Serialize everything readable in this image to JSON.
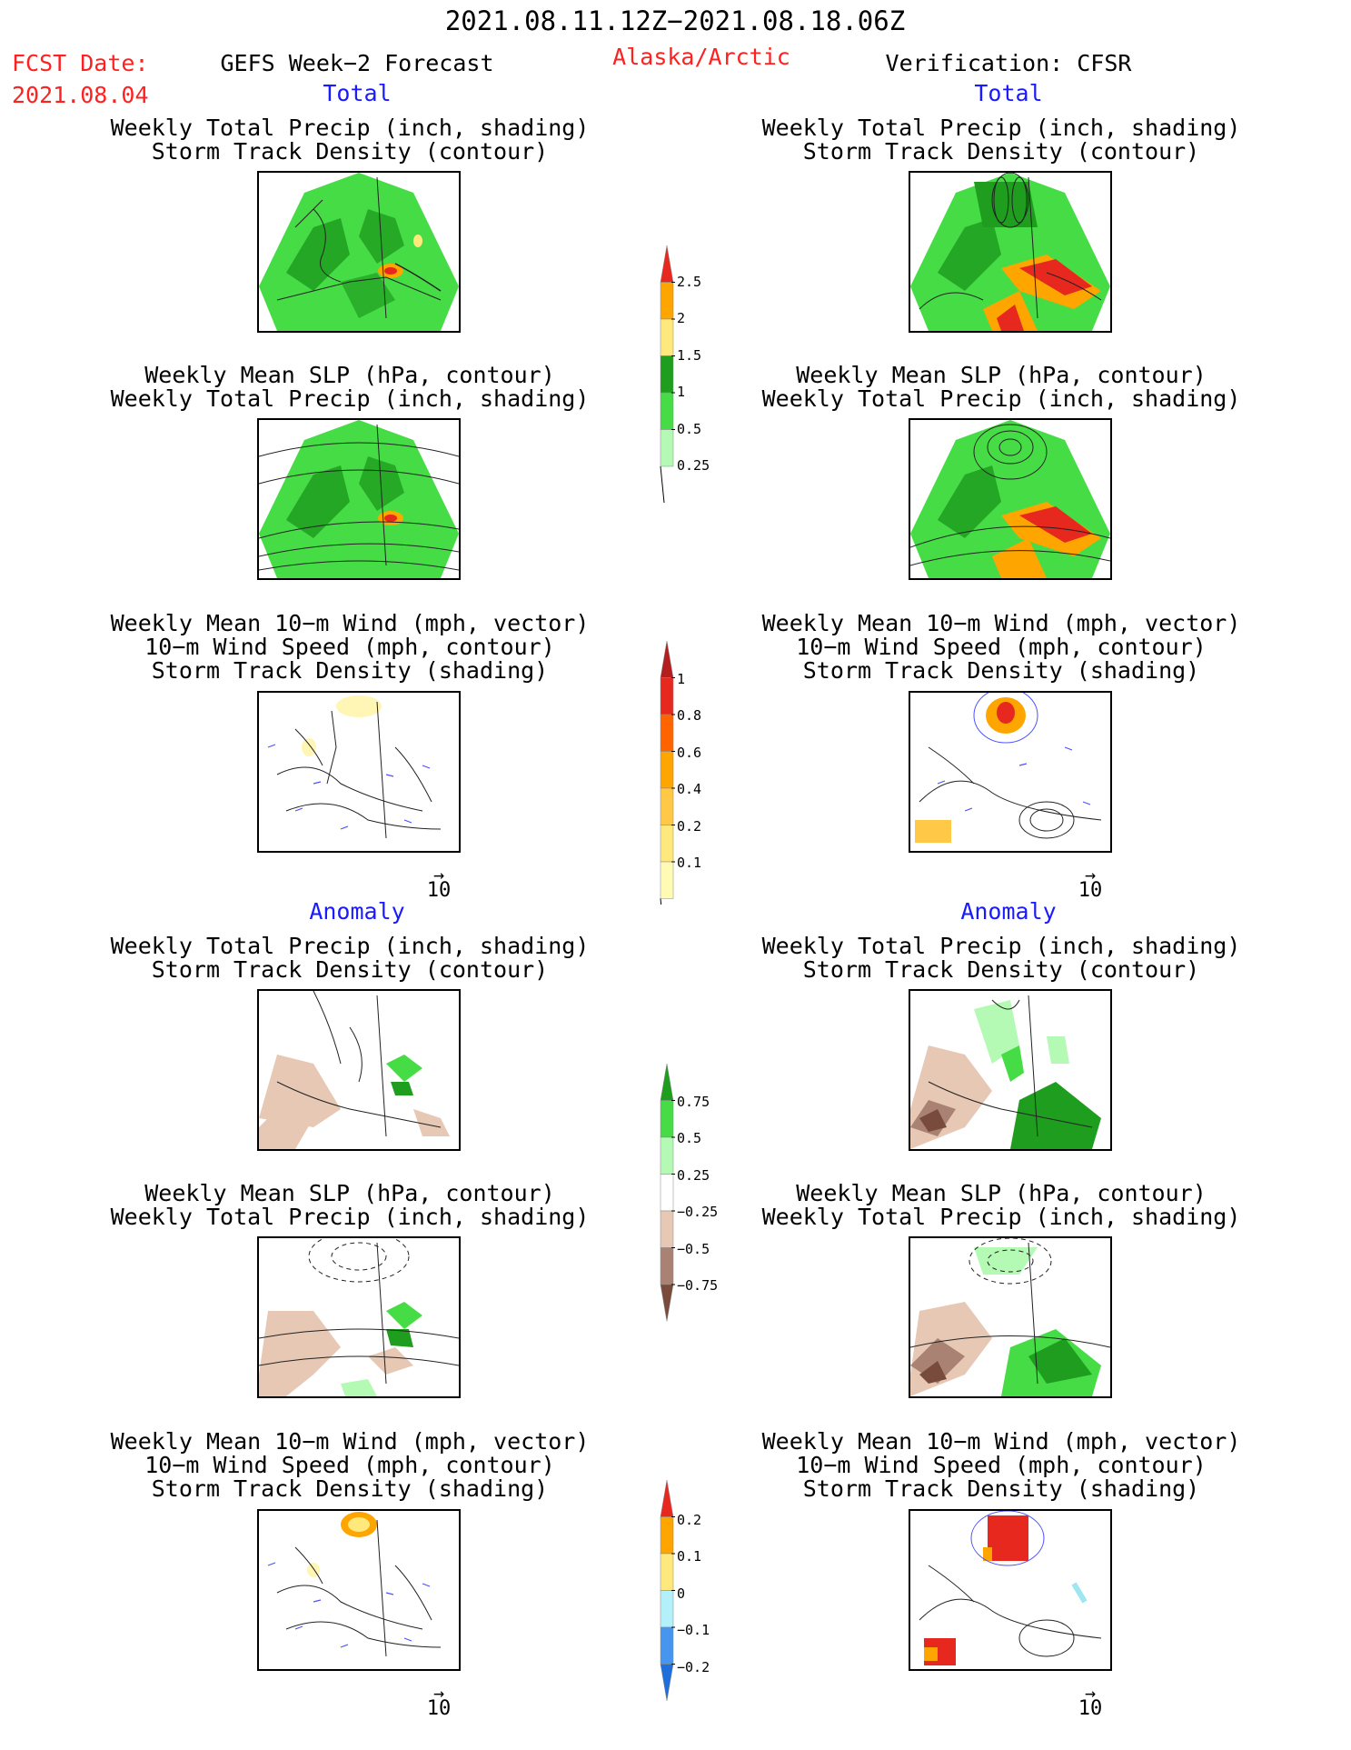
{
  "header": {
    "period": "2021.08.11.12Z−2021.08.18.06Z",
    "fcst_label": "FCST Date:",
    "fcst_date": "2021.08.04",
    "model": "GEFS Week−2 Forecast",
    "region": "Alaska/Arctic",
    "verification": "Verification: CFSR"
  },
  "sections": {
    "total": "Total",
    "anomaly": "Anomaly"
  },
  "panel_titles": {
    "precip_track": "Weekly Total Precip (inch, shading)\nStorm Track Density (contour)",
    "slp_precip": "Weekly Mean SLP (hPa, contour)\nWeekly Total Precip (inch, shading)",
    "wind_track": "Weekly Mean 10−m Wind (mph, vector)\n10−m Wind Speed (mph, contour)\nStorm Track Density (shading)"
  },
  "vector_ref": {
    "arrow": "→",
    "value": "10"
  },
  "colorbars": {
    "precip_total": {
      "labels": [
        "2.5",
        "2",
        "1.5",
        "1",
        "0.5",
        "0.25"
      ],
      "colors": [
        "#e6281e",
        "#ffa500",
        "#ffe87c",
        "#1e9d1e",
        "#46dc46",
        "#b4fab4"
      ]
    },
    "track_total": {
      "labels": [
        "1",
        "0.8",
        "0.6",
        "0.4",
        "0.2",
        "0.1"
      ],
      "colors": [
        "#b41e1e",
        "#e6281e",
        "#ff6400",
        "#ffa500",
        "#ffc846",
        "#ffe87c",
        "#fffab4"
      ]
    },
    "precip_anomaly": {
      "labels": [
        "0.75",
        "0.5",
        "0.25",
        "−0.25",
        "−0.5",
        "−0.75"
      ],
      "colors": [
        "#1e9d1e",
        "#46dc46",
        "#b4fab4",
        "#ffffff",
        "#e6c8b4",
        "#aa8273",
        "#784b3c"
      ]
    },
    "track_anomaly": {
      "labels": [
        "0.2",
        "0.1",
        "0",
        "−0.1",
        "−0.2"
      ],
      "colors": [
        "#e6281e",
        "#ffa500",
        "#ffe87c",
        "#b4f0fa",
        "#4696f0",
        "#1e6edc"
      ]
    }
  }
}
